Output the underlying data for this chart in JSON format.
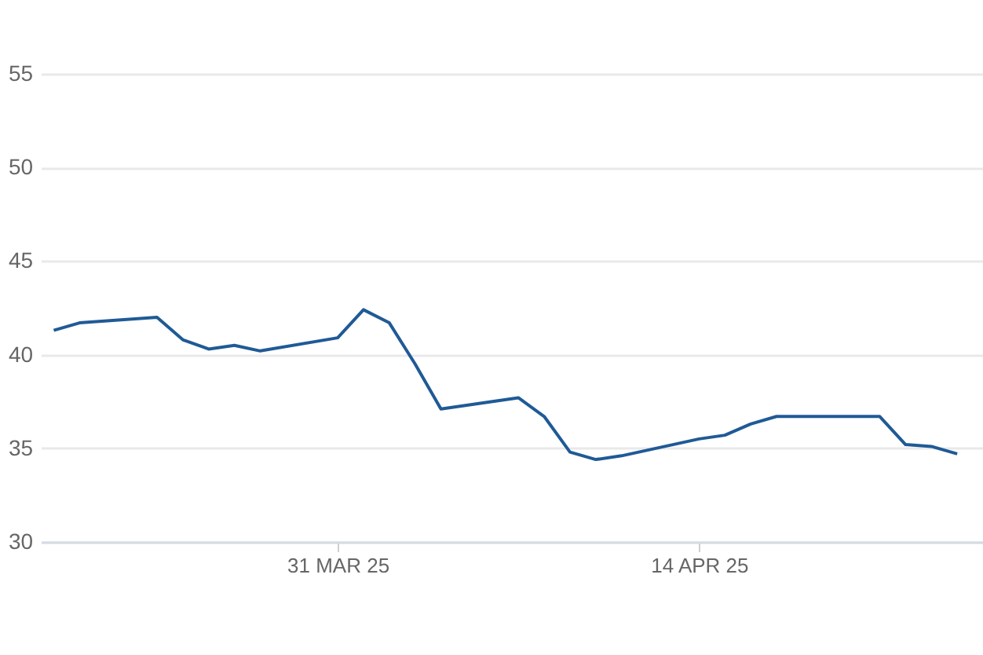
{
  "chart_data": {
    "type": "line",
    "x": [
      "2025-03-20",
      "2025-03-21",
      "2025-03-24",
      "2025-03-25",
      "2025-03-26",
      "2025-03-27",
      "2025-03-28",
      "2025-03-31",
      "2025-04-01",
      "2025-04-02",
      "2025-04-03",
      "2025-04-04",
      "2025-04-07",
      "2025-04-08",
      "2025-04-09",
      "2025-04-10",
      "2025-04-11",
      "2025-04-14",
      "2025-04-15",
      "2025-04-16",
      "2025-04-17",
      "2025-04-21",
      "2025-04-22",
      "2025-04-23",
      "2025-04-24"
    ],
    "series": [
      {
        "color": "#1f5a96",
        "values": [
          41.3,
          41.7,
          42.0,
          40.8,
          40.3,
          40.5,
          40.2,
          40.9,
          42.4,
          41.7,
          39.5,
          37.1,
          37.7,
          36.7,
          34.8,
          34.4,
          34.6,
          35.5,
          35.7,
          36.3,
          36.7,
          36.7,
          35.2,
          35.1,
          34.7
        ]
      }
    ],
    "xlim": [
      "2025-03-19T12:00",
      "2025-04-25"
    ],
    "xticks": [
      {
        "value": "2025-03-31",
        "label": "31 MAR 25"
      },
      {
        "value": "2025-04-14",
        "label": "14 APR 25"
      }
    ],
    "ylim": [
      30,
      55
    ],
    "yticks": [
      30,
      35,
      40,
      45,
      50,
      55
    ],
    "grid": "y"
  }
}
